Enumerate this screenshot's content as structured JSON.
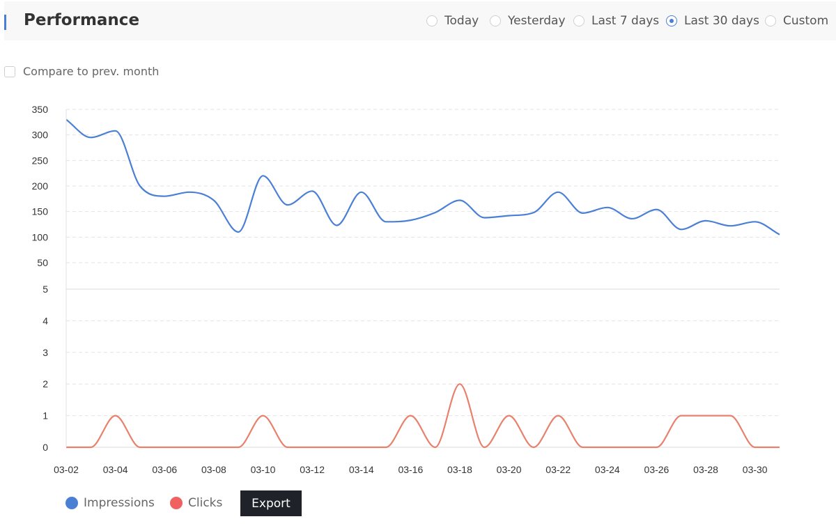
{
  "header": {
    "title": "Performance",
    "ranges": [
      {
        "label": "Today",
        "selected": false
      },
      {
        "label": "Yesterday",
        "selected": false
      },
      {
        "label": "Last 7 days",
        "selected": false
      },
      {
        "label": "Last 30 days",
        "selected": true
      },
      {
        "label": "Custom",
        "selected": false
      }
    ]
  },
  "compare": {
    "label": "Compare to prev. month",
    "checked": false
  },
  "legend": [
    {
      "label": "Impressions",
      "color": "#4a7fd6"
    },
    {
      "label": "Clicks",
      "color": "#f06161"
    }
  ],
  "export_label": "Export",
  "chart_data": {
    "type": "line",
    "grid": true,
    "x": [
      "03-02",
      "03-03",
      "03-04",
      "03-05",
      "03-06",
      "03-07",
      "03-08",
      "03-09",
      "03-10",
      "03-11",
      "03-12",
      "03-13",
      "03-14",
      "03-15",
      "03-16",
      "03-17",
      "03-18",
      "03-19",
      "03-20",
      "03-21",
      "03-22",
      "03-23",
      "03-24",
      "03-25",
      "03-26",
      "03-27",
      "03-28",
      "03-29",
      "03-30",
      "03-31"
    ],
    "x_tick_labels": [
      "03-02",
      "03-04",
      "03-06",
      "03-08",
      "03-10",
      "03-12",
      "03-14",
      "03-16",
      "03-18",
      "03-20",
      "03-22",
      "03-24",
      "03-26",
      "03-28",
      "03-30"
    ],
    "panels": [
      {
        "series": "Impressions",
        "color": "#4a7fd6",
        "ylim": [
          50,
          350
        ],
        "yticks": [
          "350",
          "300",
          "250",
          "200",
          "150",
          "100",
          "50"
        ],
        "values": [
          330,
          295,
          308,
          200,
          180,
          188,
          172,
          110,
          220,
          163,
          190,
          123,
          188,
          130,
          133,
          148,
          172,
          138,
          142,
          148,
          188,
          147,
          158,
          136,
          154,
          115,
          132,
          122,
          130,
          105
        ]
      },
      {
        "series": "Clicks",
        "color": "#e8806c",
        "ylim": [
          0,
          5
        ],
        "yticks": [
          "5",
          "4",
          "3",
          "2",
          "1",
          "0"
        ],
        "values": [
          0,
          0,
          1,
          0,
          0,
          0,
          0,
          0,
          1,
          0,
          0,
          0,
          0,
          0,
          1,
          0,
          2,
          0,
          1,
          0,
          1,
          0,
          0,
          0,
          0,
          1,
          1,
          1,
          0,
          0
        ]
      }
    ]
  }
}
